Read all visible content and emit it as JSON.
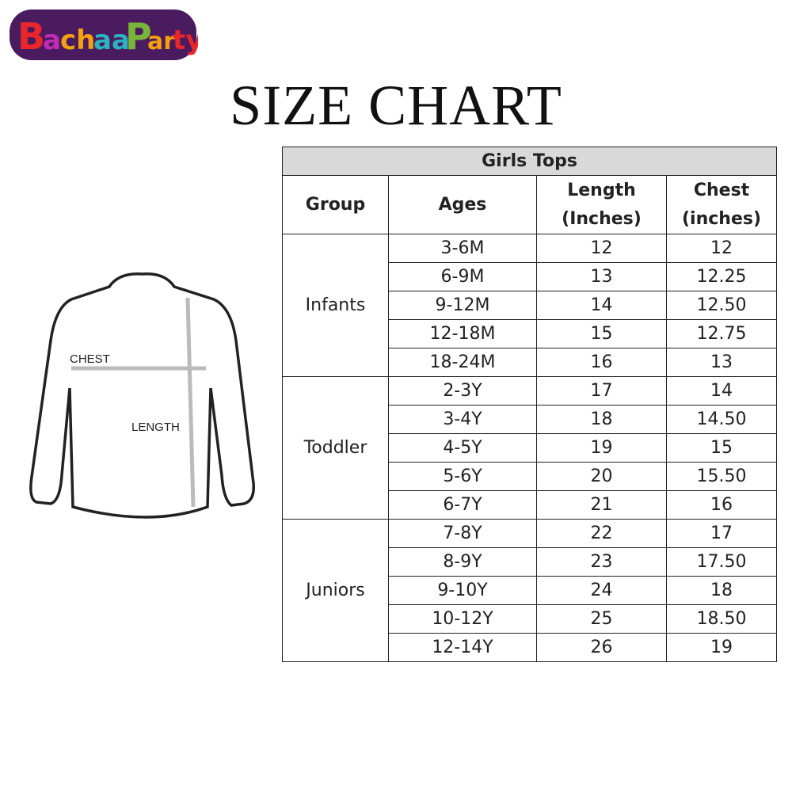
{
  "logo": {
    "text": "BachaaParty",
    "colors": [
      "#e8262b",
      "#c22bb3",
      "#2bb3c2",
      "#f5a10d",
      "#7ab53a",
      "#4a1b5e"
    ]
  },
  "title": "SIZE CHART",
  "diagram": {
    "chest_label": "CHEST",
    "length_label": "LENGTH"
  },
  "table": {
    "caption": "Girls Tops",
    "headers": [
      "Group",
      "Ages",
      "Length\n(Inches)",
      "Chest\n(inches)"
    ],
    "header_lines": [
      [
        "Group"
      ],
      [
        "Ages"
      ],
      [
        "Length",
        "(Inches)"
      ],
      [
        "Chest",
        "(inches)"
      ]
    ],
    "groups": [
      {
        "name": "Infants",
        "rows": [
          [
            "3-6M",
            "12",
            "12"
          ],
          [
            "6-9M",
            "13",
            "12.25"
          ],
          [
            "9-12M",
            "14",
            "12.50"
          ],
          [
            "12-18M",
            "15",
            "12.75"
          ],
          [
            "18-24M",
            "16",
            "13"
          ]
        ]
      },
      {
        "name": "Toddler",
        "rows": [
          [
            "2-3Y",
            "17",
            "14"
          ],
          [
            "3-4Y",
            "18",
            "14.50"
          ],
          [
            "4-5Y",
            "19",
            "15"
          ],
          [
            "5-6Y",
            "20",
            "15.50"
          ],
          [
            "6-7Y",
            "21",
            "16"
          ]
        ]
      },
      {
        "name": "Juniors",
        "rows": [
          [
            "7-8Y",
            "22",
            "17"
          ],
          [
            "8-9Y",
            "23",
            "17.50"
          ],
          [
            "9-10Y",
            "24",
            "18"
          ],
          [
            "10-12Y",
            "25",
            "18.50"
          ],
          [
            "12-14Y",
            "26",
            "19"
          ]
        ]
      }
    ]
  }
}
